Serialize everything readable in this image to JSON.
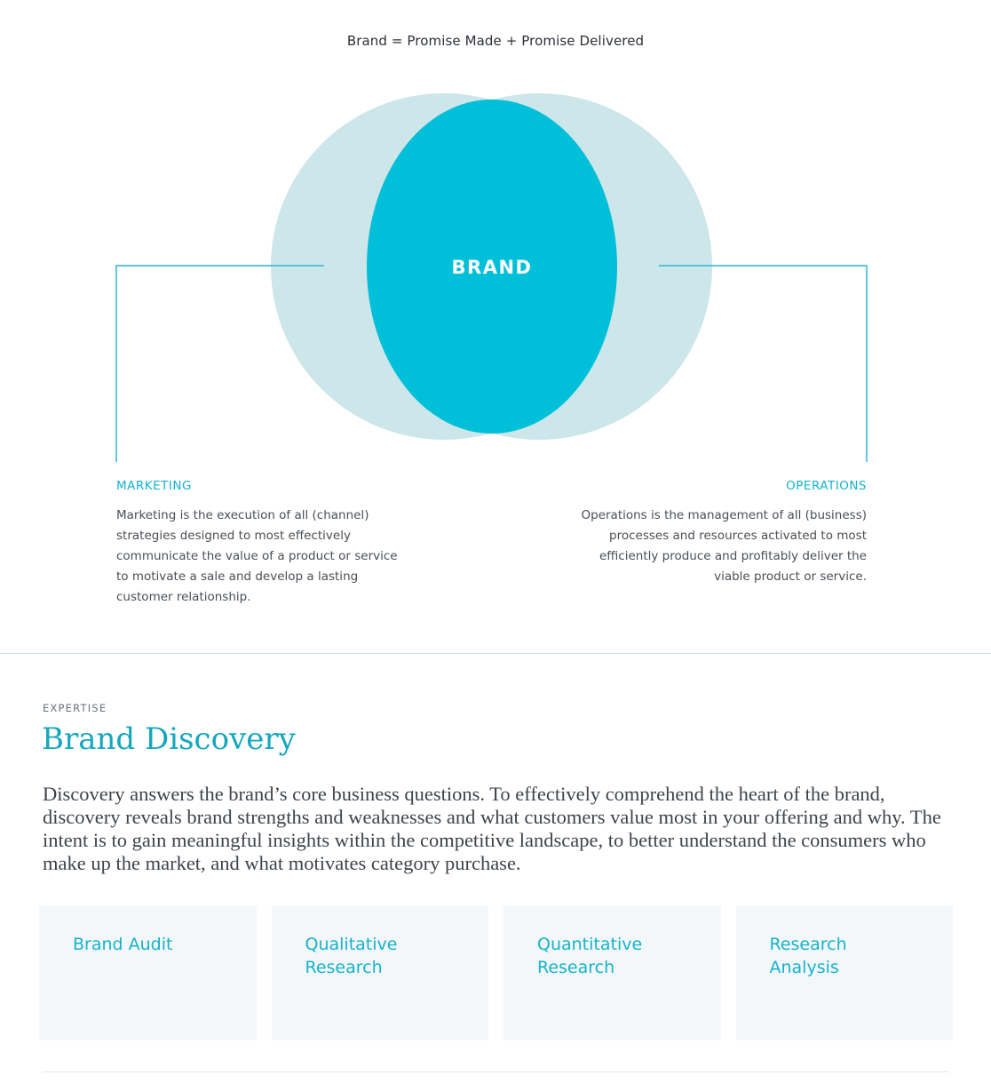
{
  "diagram": {
    "title": "Brand = Promise Made + Promise Delivered",
    "center_label": "BRAND",
    "colors": {
      "outer_circles": "#cde6ea",
      "center": "#00bfd8",
      "connector_lines": "#2bb7d0",
      "accent_text": "#14b3cc"
    },
    "marketing": {
      "title": "MARKETING",
      "description": "Marketing is the execution of all (channel) strategies designed to most effectively communicate the value of a product or service to motivate a sale and develop a lasting customer relationship."
    },
    "operations": {
      "title": "OPERATIONS",
      "description": "Operations is the management of all (business) processes and resources activated to most efficiently produce and profitably deliver the viable product or service."
    }
  },
  "expertise": {
    "eyebrow": "EXPERTISE",
    "heading": "Brand Discovery",
    "body": "Discovery answers the brand’s core business questions. To effectively comprehend the heart of the brand, discovery reveals brand strengths and weaknesses and what customers value most in your offering and why. The intent is to gain meaningful insights within the competitive landscape, to better understand the consumers who make up the market, and what motivates category purchase.",
    "cards": [
      {
        "label": "Brand Audit"
      },
      {
        "label": "Qualitative Research"
      },
      {
        "label": "Quantitative Research"
      },
      {
        "label": "Research Analysis"
      }
    ]
  }
}
